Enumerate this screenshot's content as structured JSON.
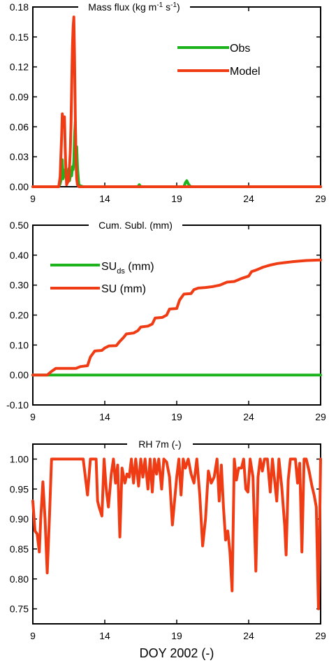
{
  "xlabel": "DOY 2002 (-)",
  "colors": {
    "obs": "#1db31d",
    "model": "#f03c14",
    "axis": "#000000"
  },
  "chart_data": [
    {
      "type": "line",
      "title": "Mass flux (kg m⁻¹ s⁻¹)",
      "title_parts": {
        "main": "Mass flux (kg m",
        "sup1": "-1",
        "mid": " s",
        "sup2": "-1",
        "end": ")"
      },
      "xlim": [
        9,
        29
      ],
      "ylim": [
        0,
        0.18
      ],
      "xticks": [
        9,
        14,
        19,
        24,
        29
      ],
      "yticks": [
        "0.00",
        "0.03",
        "0.06",
        "0.09",
        "0.12",
        "0.15",
        "0.18"
      ],
      "legend_position": "top-right",
      "series": [
        {
          "name": "Obs",
          "color": "#1db31d",
          "x": [
            9,
            10.8,
            10.9,
            10.95,
            11.0,
            11.05,
            11.1,
            11.15,
            11.2,
            11.25,
            11.3,
            11.35,
            11.4,
            11.45,
            11.5,
            11.55,
            11.6,
            11.65,
            11.7,
            11.75,
            11.8,
            11.85,
            11.9,
            11.95,
            12.0,
            12.05,
            12.1,
            12.15,
            12.2,
            12.3,
            12.5,
            16.3,
            16.4,
            16.5,
            19.5,
            19.6,
            19.7,
            19.8,
            19.9,
            20.0,
            29
          ],
          "y": [
            0,
            0,
            0.003,
            0.006,
            0.012,
            0.027,
            0.008,
            0.015,
            0.01,
            0.017,
            0.012,
            0.016,
            0.009,
            0.013,
            0.018,
            0.006,
            0.01,
            0.016,
            0.011,
            0.02,
            0.017,
            0.025,
            0.05,
            0.065,
            0.03,
            0.04,
            0.02,
            0.01,
            0.002,
            0.001,
            0,
            0,
            0.002,
            0,
            0,
            0.004,
            0.006,
            0.003,
            0.001,
            0,
            0
          ]
        },
        {
          "name": "Model",
          "color": "#f03c14",
          "x": [
            9,
            10.8,
            10.9,
            11.0,
            11.05,
            11.1,
            11.15,
            11.2,
            11.25,
            11.3,
            11.35,
            11.4,
            11.5,
            11.55,
            11.6,
            11.65,
            11.7,
            11.75,
            11.8,
            11.85,
            11.9,
            11.95,
            12.0,
            12.05,
            12.1,
            12.15,
            12.2,
            29
          ],
          "y": [
            0,
            0,
            0.01,
            0.05,
            0.073,
            0.06,
            0.07,
            0.07,
            0.04,
            0.015,
            0.002,
            0.004,
            0.006,
            0.02,
            0.035,
            0.06,
            0.1,
            0.14,
            0.16,
            0.17,
            0.13,
            0.07,
            0.025,
            0.008,
            0.002,
            0.001,
            0,
            0
          ]
        }
      ]
    },
    {
      "type": "line",
      "title": "Cum. Subl. (mm)",
      "xlim": [
        9,
        29
      ],
      "ylim": [
        -0.1,
        0.5
      ],
      "xticks": [
        9,
        14,
        19,
        24,
        29
      ],
      "yticks": [
        "-0.10",
        "0.00",
        "0.10",
        "0.20",
        "0.30",
        "0.40",
        "0.50"
      ],
      "legend_position": "top-left",
      "series": [
        {
          "name": "SU_ds (mm)",
          "label_parts": {
            "main": "SU",
            "sub": "ds",
            "end": " (mm)"
          },
          "color": "#1db31d",
          "x": [
            9,
            29
          ],
          "y": [
            0,
            0
          ]
        },
        {
          "name": "SU (mm)",
          "color": "#f03c14",
          "x": [
            9,
            10.0,
            10.3,
            10.6,
            12.0,
            12.3,
            12.8,
            13.0,
            13.3,
            13.8,
            14.0,
            14.3,
            14.8,
            15.0,
            15.3,
            15.5,
            16.0,
            16.3,
            16.5,
            17.0,
            17.3,
            17.5,
            18.0,
            18.3,
            18.5,
            19.0,
            19.2,
            19.5,
            20.0,
            20.2,
            20.5,
            21.0,
            21.5,
            22.0,
            22.5,
            23.0,
            23.5,
            24.0,
            24.2,
            24.5,
            25.0,
            25.5,
            26.0,
            26.5,
            27.0,
            27.5,
            28.0,
            28.5,
            29.0
          ],
          "y": [
            0,
            0,
            0.012,
            0.022,
            0.022,
            0.028,
            0.031,
            0.06,
            0.08,
            0.082,
            0.09,
            0.097,
            0.098,
            0.11,
            0.125,
            0.137,
            0.14,
            0.148,
            0.16,
            0.163,
            0.17,
            0.19,
            0.192,
            0.2,
            0.22,
            0.222,
            0.25,
            0.27,
            0.272,
            0.285,
            0.29,
            0.292,
            0.295,
            0.3,
            0.31,
            0.312,
            0.322,
            0.33,
            0.345,
            0.35,
            0.36,
            0.367,
            0.372,
            0.375,
            0.378,
            0.38,
            0.382,
            0.383,
            0.384
          ]
        }
      ]
    },
    {
      "type": "line",
      "title": "RH 7m (-)",
      "xlim": [
        9,
        29
      ],
      "ylim": [
        0.725,
        1.025
      ],
      "xticks": [
        9,
        14,
        19,
        24,
        29
      ],
      "yticks": [
        "0.75",
        "0.80",
        "0.85",
        "0.90",
        "0.95",
        "1.00"
      ],
      "series": [
        {
          "name": "RH 7m",
          "color": "#f03c14",
          "x": [
            9.0,
            9.15,
            9.3,
            9.45,
            9.55,
            9.7,
            9.85,
            10.0,
            10.15,
            10.3,
            10.5,
            12.5,
            12.8,
            13.0,
            13.4,
            13.5,
            13.6,
            13.8,
            13.95,
            14.1,
            14.25,
            14.45,
            14.6,
            14.75,
            14.9,
            15.05,
            15.2,
            15.4,
            15.55,
            15.7,
            15.85,
            16.0,
            16.15,
            16.35,
            16.5,
            16.65,
            16.8,
            17.0,
            17.15,
            17.3,
            17.45,
            17.6,
            17.75,
            17.95,
            18.1,
            18.3,
            18.5,
            18.7,
            18.85,
            19.0,
            19.15,
            19.3,
            19.45,
            19.6,
            19.8,
            20.0,
            20.2,
            20.4,
            20.6,
            20.8,
            21.0,
            21.2,
            21.4,
            21.6,
            21.8,
            21.95,
            22.1,
            22.25,
            22.4,
            22.55,
            22.7,
            22.85,
            23.0,
            23.15,
            23.3,
            23.5,
            23.65,
            23.8,
            23.95,
            24.1,
            24.3,
            24.5,
            24.65,
            24.8,
            24.95,
            25.1,
            25.3,
            25.5,
            25.65,
            25.8,
            25.95,
            26.1,
            26.3,
            26.5,
            26.6,
            26.75,
            26.9,
            27.1,
            27.25,
            27.4,
            27.55,
            27.7,
            27.85,
            28.0,
            28.2,
            28.4,
            28.55,
            28.7,
            28.85,
            29.0
          ],
          "y": [
            0.93,
            0.88,
            0.875,
            0.845,
            0.9,
            0.962,
            0.9,
            0.81,
            0.9,
            1.0,
            1.0,
            1.0,
            0.94,
            1.0,
            1.0,
            0.93,
            0.92,
            0.905,
            1.0,
            0.95,
            0.92,
            0.975,
            1.0,
            0.96,
            0.99,
            0.87,
            0.985,
            0.96,
            0.975,
            0.97,
            1.0,
            0.96,
            1.0,
            0.955,
            1.0,
            0.97,
            1.0,
            0.95,
            1.0,
            0.945,
            1.0,
            0.975,
            1.0,
            0.95,
            1.0,
            0.995,
            0.97,
            0.89,
            0.93,
            0.97,
            1.0,
            0.94,
            1.0,
            0.985,
            1.0,
            0.975,
            0.96,
            1.0,
            0.94,
            0.855,
            0.9,
            0.98,
            0.96,
            0.97,
            1.0,
            0.93,
            0.99,
            0.92,
            0.865,
            0.88,
            0.845,
            0.78,
            1.0,
            0.965,
            0.985,
            0.985,
            1.0,
            0.95,
            0.945,
            1.0,
            0.97,
            0.813,
            0.97,
            1.0,
            0.98,
            1.0,
            1.0,
            0.945,
            1.0,
            0.965,
            0.93,
            1.0,
            0.953,
            0.89,
            0.84,
            0.965,
            1.0,
            1.0,
            1.0,
            0.96,
            0.993,
            0.845,
            1.0,
            1.0,
            0.98,
            0.955,
            0.94,
            0.92,
            0.75,
            1.0
          ]
        }
      ]
    }
  ]
}
